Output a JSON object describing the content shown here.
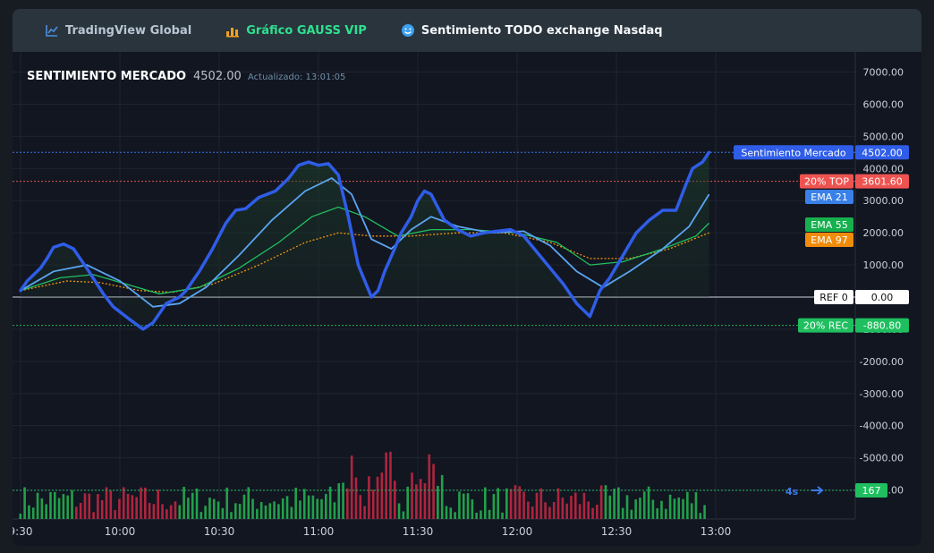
{
  "tabs": [
    {
      "label": "TradingView Global",
      "icon": "line-chart-icon",
      "color": "#b8c6d3"
    },
    {
      "label": "Gráfico GAUSS VIP",
      "icon": "bar-chart-icon",
      "color": "#2fe08f"
    },
    {
      "label": "Sentimiento TODO exchange Nasdaq",
      "icon": "smiley-icon",
      "color": "#f4f7fa"
    }
  ],
  "header": {
    "title": "SENTIMIENTO MERCADO",
    "value": "4502.00",
    "updated": "Actualizado: 13:01:05"
  },
  "colors": {
    "sentiment": "#2f5de8",
    "ema21": "#5aa5f0",
    "ema55": "#20c060",
    "ema97": "#f0960a",
    "top": "#ef5350",
    "rec": "#1fbf5f",
    "vol_up": "#22a04a",
    "vol_down": "#b0243e"
  },
  "badges": {
    "sentiment_label": "Sentimiento Mercado",
    "sentiment_value": "4502.00",
    "top_label": "20% TOP",
    "top_value": "3601.60",
    "ema21": "EMA 21",
    "ema55": "EMA 55",
    "ema97": "EMA 97",
    "ref_label": "REF 0",
    "ref_value": "0.00",
    "rec_label": "20% REC",
    "rec_value": "-880.80",
    "vol_value": "167",
    "timer": "4s"
  },
  "chart_data": {
    "type": "line",
    "x_ticks": [
      "9:30",
      "10:00",
      "10:30",
      "11:00",
      "11:30",
      "12:00",
      "12:30",
      "13:00"
    ],
    "y_ticks": [
      "7000.00",
      "6000.00",
      "5000.00",
      "4000.00",
      "3000.00",
      "2000.00",
      "1000.00",
      "-1000.00",
      "-2000.00",
      "-3000.00",
      "-4000.00",
      "-5000.00",
      "-6000.00"
    ],
    "ylim": [
      -6700,
      7300
    ],
    "x_range_minutes": [
      0,
      210
    ],
    "reference_levels": {
      "top_20": 3601.6,
      "ref": 0,
      "rec_20": -880.8,
      "current": 4502
    },
    "series": [
      {
        "name": "Sentimiento Mercado",
        "points": [
          [
            0,
            200
          ],
          [
            2,
            500
          ],
          [
            6,
            900
          ],
          [
            8,
            1200
          ],
          [
            10,
            1550
          ],
          [
            13,
            1650
          ],
          [
            16,
            1500
          ],
          [
            20,
            900
          ],
          [
            25,
            100
          ],
          [
            28,
            -300
          ],
          [
            33,
            -700
          ],
          [
            37,
            -1000
          ],
          [
            40,
            -800
          ],
          [
            44,
            -200
          ],
          [
            48,
            0
          ],
          [
            50,
            200
          ],
          [
            54,
            800
          ],
          [
            58,
            1500
          ],
          [
            62,
            2300
          ],
          [
            65,
            2700
          ],
          [
            68,
            2750
          ],
          [
            72,
            3100
          ],
          [
            77,
            3300
          ],
          [
            81,
            3700
          ],
          [
            84,
            4100
          ],
          [
            87,
            4200
          ],
          [
            90,
            4100
          ],
          [
            93,
            4150
          ],
          [
            96,
            3800
          ],
          [
            99,
            2500
          ],
          [
            102,
            1000
          ],
          [
            106,
            0
          ],
          [
            108,
            200
          ],
          [
            110,
            800
          ],
          [
            113,
            1500
          ],
          [
            115,
            2000
          ],
          [
            118,
            2500
          ],
          [
            120,
            3000
          ],
          [
            122,
            3300
          ],
          [
            124,
            3200
          ],
          [
            126,
            2800
          ],
          [
            128,
            2400
          ],
          [
            132,
            2100
          ],
          [
            136,
            1900
          ],
          [
            140,
            2000
          ],
          [
            144,
            2050
          ],
          [
            148,
            2100
          ],
          [
            152,
            1900
          ],
          [
            156,
            1400
          ],
          [
            160,
            900
          ],
          [
            164,
            400
          ],
          [
            168,
            -200
          ],
          [
            172,
            -600
          ],
          [
            175,
            200
          ],
          [
            178,
            600
          ],
          [
            182,
            1300
          ],
          [
            186,
            2000
          ],
          [
            190,
            2400
          ],
          [
            194,
            2700
          ],
          [
            198,
            2700
          ],
          [
            201,
            3500
          ],
          [
            203,
            4000
          ],
          [
            206,
            4200
          ],
          [
            208,
            4502
          ]
        ]
      },
      {
        "name": "EMA 21",
        "points": [
          [
            0,
            200
          ],
          [
            10,
            800
          ],
          [
            20,
            1000
          ],
          [
            30,
            500
          ],
          [
            40,
            -300
          ],
          [
            48,
            -200
          ],
          [
            56,
            300
          ],
          [
            66,
            1300
          ],
          [
            76,
            2400
          ],
          [
            86,
            3300
          ],
          [
            94,
            3700
          ],
          [
            100,
            3200
          ],
          [
            106,
            1800
          ],
          [
            112,
            1500
          ],
          [
            118,
            2100
          ],
          [
            124,
            2500
          ],
          [
            132,
            2200
          ],
          [
            142,
            2000
          ],
          [
            152,
            2050
          ],
          [
            160,
            1600
          ],
          [
            168,
            800
          ],
          [
            176,
            300
          ],
          [
            184,
            800
          ],
          [
            194,
            1500
          ],
          [
            202,
            2200
          ],
          [
            208,
            3200
          ]
        ]
      },
      {
        "name": "EMA 55",
        "points": [
          [
            0,
            200
          ],
          [
            12,
            600
          ],
          [
            22,
            700
          ],
          [
            32,
            400
          ],
          [
            42,
            100
          ],
          [
            54,
            300
          ],
          [
            66,
            900
          ],
          [
            78,
            1700
          ],
          [
            88,
            2500
          ],
          [
            96,
            2800
          ],
          [
            104,
            2500
          ],
          [
            114,
            1900
          ],
          [
            124,
            2100
          ],
          [
            136,
            2100
          ],
          [
            150,
            2000
          ],
          [
            162,
            1700
          ],
          [
            172,
            1000
          ],
          [
            182,
            1100
          ],
          [
            194,
            1500
          ],
          [
            204,
            1900
          ],
          [
            208,
            2300
          ]
        ]
      },
      {
        "name": "EMA 97",
        "points": [
          [
            0,
            200
          ],
          [
            14,
            500
          ],
          [
            24,
            450
          ],
          [
            36,
            200
          ],
          [
            46,
            150
          ],
          [
            58,
            400
          ],
          [
            72,
            1000
          ],
          [
            86,
            1700
          ],
          [
            96,
            2000
          ],
          [
            106,
            1900
          ],
          [
            118,
            1900
          ],
          [
            132,
            2000
          ],
          [
            146,
            2000
          ],
          [
            160,
            1700
          ],
          [
            172,
            1200
          ],
          [
            184,
            1200
          ],
          [
            196,
            1500
          ],
          [
            208,
            2000
          ]
        ]
      }
    ]
  }
}
